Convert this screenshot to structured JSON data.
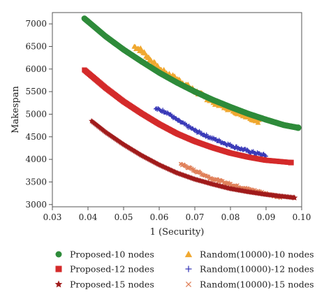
{
  "chart_data": {
    "type": "scatter",
    "xlabel": "1 (Security)",
    "ylabel": "Makespan",
    "xlim": [
      0.03,
      0.1
    ],
    "ylim": [
      2950,
      7250
    ],
    "x_ticks": [
      "0.03",
      "0.04",
      "0.05",
      "0.06",
      "0.07",
      "0.08",
      "0.09",
      "0.10"
    ],
    "y_ticks": [
      "3000",
      "3500",
      "4000",
      "4500",
      "5000",
      "5500",
      "6000",
      "6500",
      "7000"
    ],
    "x_tick_values": [
      0.03,
      0.04,
      0.05,
      0.06,
      0.07,
      0.08,
      0.09,
      0.1
    ],
    "y_tick_values": [
      3000,
      3500,
      4000,
      4500,
      5000,
      5500,
      6000,
      6500,
      7000
    ],
    "grid": false,
    "legend_position": "bottom",
    "series": [
      {
        "name": "Proposed-10 nodes",
        "marker": "circle",
        "color": "#2e8b3a",
        "x_range": [
          0.039,
          0.099
        ],
        "y_range": [
          7120,
          4700
        ],
        "points": [
          [
            0.039,
            7120
          ],
          [
            0.045,
            6720
          ],
          [
            0.05,
            6430
          ],
          [
            0.055,
            6170
          ],
          [
            0.06,
            5920
          ],
          [
            0.065,
            5700
          ],
          [
            0.07,
            5500
          ],
          [
            0.075,
            5320
          ],
          [
            0.08,
            5160
          ],
          [
            0.085,
            5010
          ],
          [
            0.09,
            4880
          ],
          [
            0.095,
            4760
          ],
          [
            0.099,
            4700
          ]
        ]
      },
      {
        "name": "Proposed-12 nodes",
        "marker": "square",
        "color": "#d42a2a",
        "x_range": [
          0.039,
          0.097
        ],
        "y_range": [
          5980,
          3930
        ],
        "points": [
          [
            0.039,
            5980
          ],
          [
            0.045,
            5580
          ],
          [
            0.05,
            5280
          ],
          [
            0.055,
            5020
          ],
          [
            0.06,
            4780
          ],
          [
            0.065,
            4570
          ],
          [
            0.07,
            4400
          ],
          [
            0.075,
            4260
          ],
          [
            0.08,
            4140
          ],
          [
            0.085,
            4050
          ],
          [
            0.09,
            3980
          ],
          [
            0.097,
            3930
          ]
        ]
      },
      {
        "name": "Proposed-15 nodes",
        "marker": "star",
        "color": "#a01b1b",
        "x_range": [
          0.041,
          0.098
        ],
        "y_range": [
          4850,
          3150
        ],
        "points": [
          [
            0.041,
            4850
          ],
          [
            0.045,
            4600
          ],
          [
            0.05,
            4330
          ],
          [
            0.055,
            4090
          ],
          [
            0.06,
            3880
          ],
          [
            0.065,
            3700
          ],
          [
            0.07,
            3560
          ],
          [
            0.075,
            3450
          ],
          [
            0.08,
            3350
          ],
          [
            0.085,
            3280
          ],
          [
            0.09,
            3220
          ],
          [
            0.098,
            3150
          ]
        ]
      },
      {
        "name": "Random(10000)-10 nodes",
        "marker": "triangle",
        "color": "#f0a830",
        "x_range": [
          0.053,
          0.088
        ],
        "y_range": [
          6500,
          4850
        ],
        "points": [
          [
            0.053,
            6500
          ],
          [
            0.055,
            6420
          ],
          [
            0.06,
            6000
          ],
          [
            0.065,
            5780
          ],
          [
            0.07,
            5520
          ],
          [
            0.075,
            5280
          ],
          [
            0.08,
            5110
          ],
          [
            0.085,
            4950
          ],
          [
            0.088,
            4850
          ]
        ]
      },
      {
        "name": "Random(10000)-12 nodes",
        "marker": "plus",
        "color": "#3a3ab8",
        "x_range": [
          0.059,
          0.09
        ],
        "y_range": [
          5120,
          4080
        ],
        "points": [
          [
            0.059,
            5120
          ],
          [
            0.062,
            5050
          ],
          [
            0.065,
            4870
          ],
          [
            0.07,
            4640
          ],
          [
            0.075,
            4460
          ],
          [
            0.08,
            4310
          ],
          [
            0.085,
            4180
          ],
          [
            0.09,
            4080
          ]
        ]
      },
      {
        "name": "Random(10000)-15 nodes",
        "marker": "x",
        "color": "#e0805a",
        "x_range": [
          0.066,
          0.094
        ],
        "y_range": [
          3900,
          3150
        ],
        "points": [
          [
            0.066,
            3900
          ],
          [
            0.07,
            3750
          ],
          [
            0.075,
            3570
          ],
          [
            0.08,
            3450
          ],
          [
            0.085,
            3340
          ],
          [
            0.09,
            3250
          ],
          [
            0.094,
            3150
          ]
        ]
      }
    ]
  }
}
